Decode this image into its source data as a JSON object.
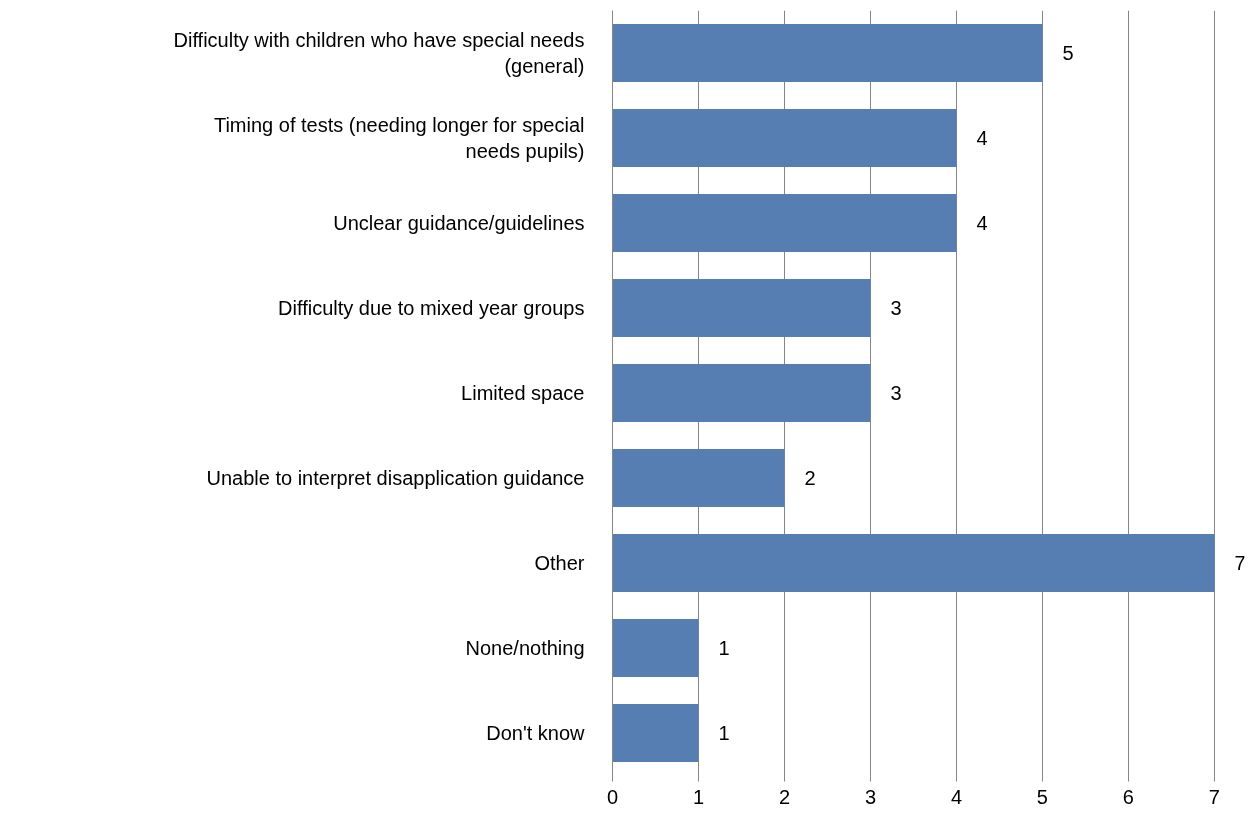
{
  "chart_data": {
    "type": "bar",
    "orientation": "horizontal",
    "categories": [
      "Difficulty with children who have special needs (general)",
      "Timing of tests (needing longer for special needs pupils)",
      "Unclear guidance/guidelines",
      "Difficulty due to mixed year groups",
      "Limited space",
      "Unable to interpret disapplication guidance",
      "Other",
      "None/nothing",
      "Don't know"
    ],
    "values": [
      5,
      4,
      4,
      3,
      3,
      2,
      7,
      1,
      1
    ],
    "color": "#567eb3",
    "xlim": [
      0,
      7
    ],
    "xticks": [
      0,
      1,
      2,
      3,
      4,
      5,
      6,
      7
    ],
    "grid": "x",
    "data_labels": true
  }
}
